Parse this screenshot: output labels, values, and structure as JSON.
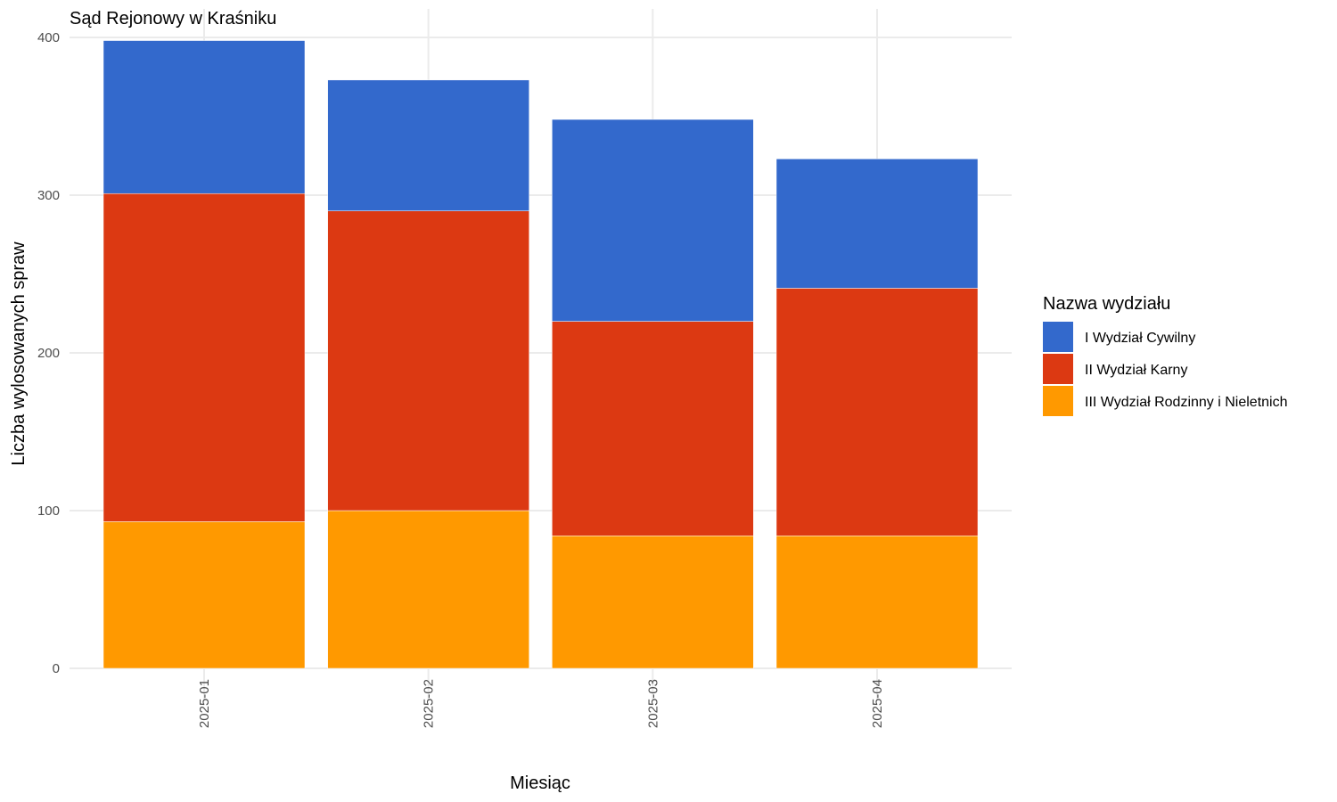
{
  "chart_data": {
    "type": "bar",
    "stacked": true,
    "title": "Sąd Rejonowy w Kraśniku",
    "xlabel": "Miesiąc",
    "ylabel": "Liczba wylosowanych spraw",
    "ylim": [
      0,
      400
    ],
    "yticks": [
      "0",
      "100",
      "200",
      "300",
      "400"
    ],
    "categories": [
      "2025-01",
      "2025-02",
      "2025-03",
      "2025-04"
    ],
    "grid": true,
    "legend": {
      "title": "Nazwa wydziału",
      "position": "right"
    },
    "series": [
      {
        "name": "I Wydział Cywilny",
        "color": "#3369CC",
        "values": [
          97,
          83,
          128,
          82
        ]
      },
      {
        "name": "II Wydział Karny",
        "color": "#DC3912",
        "values": [
          208,
          190,
          136,
          157
        ]
      },
      {
        "name": "III Wydział Rodzinny i Nieletnich",
        "color": "#FF9900",
        "values": [
          93,
          100,
          84,
          84
        ]
      }
    ]
  }
}
